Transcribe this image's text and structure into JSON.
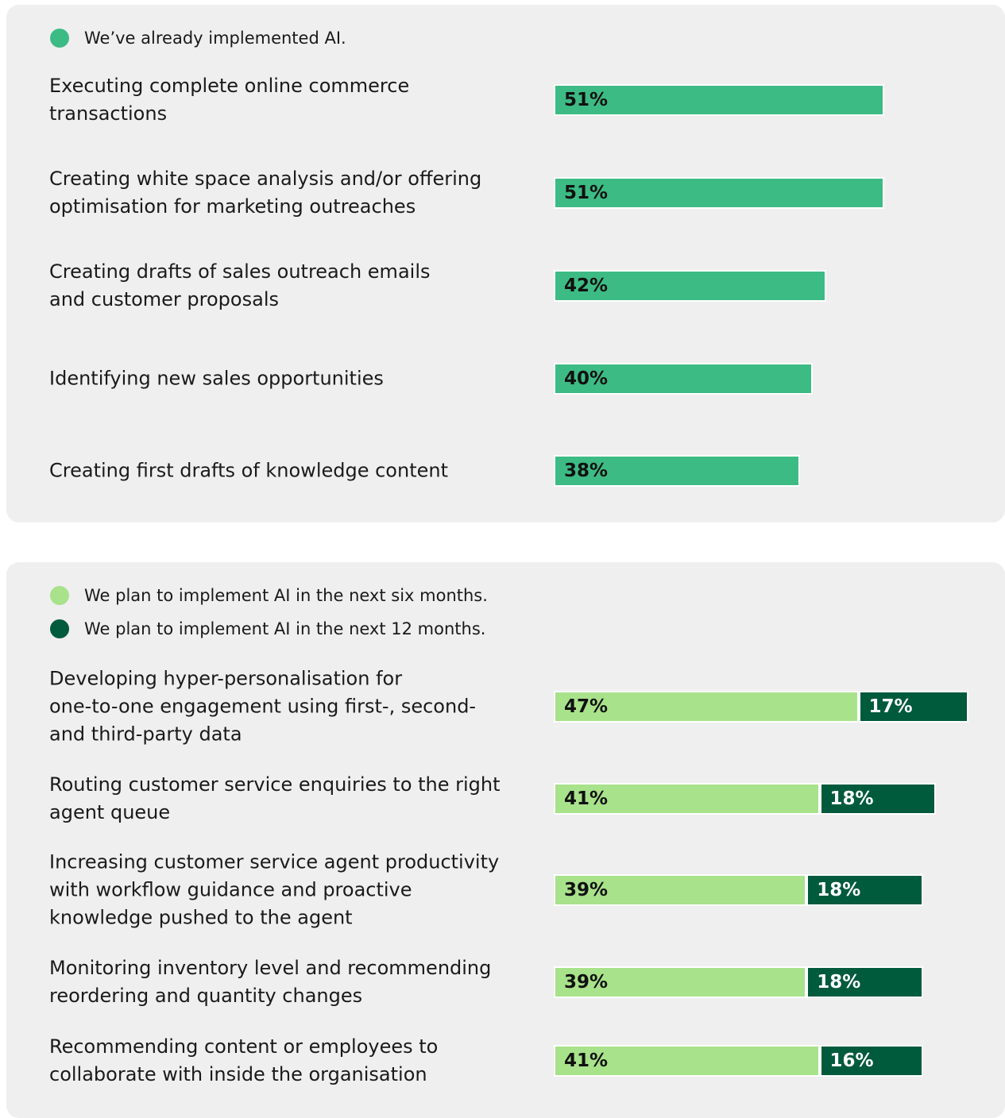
{
  "chart_data": [
    {
      "type": "bar",
      "categories": [
        "Executing complete online commerce\ntransactions",
        "Creating white space analysis and/or offering\noptimisation for marketing outreaches",
        "Creating drafts of sales outreach emails\nand customer proposals",
        "Identifying new sales opportunities",
        "Creating first drafts of knowledge content"
      ],
      "series": [
        {
          "name": "We’ve already implemented AI.",
          "color": "#3dbb84",
          "values": [
            51,
            51,
            42,
            40,
            38
          ],
          "value_labels": [
            "51%",
            "51%",
            "42%",
            "40%",
            "38%"
          ]
        }
      ]
    },
    {
      "type": "stacked_bar",
      "categories": [
        "Developing hyper-personalisation for\none-to-one engagement using first-, second-\nand third-party data",
        "Routing customer service enquiries to the right\nagent queue",
        "Increasing customer service agent productivity\nwith workflow guidance and proactive\nknowledge pushed to the agent",
        "Monitoring inventory level and recommending\nreordering and quantity changes",
        "Recommending content or employees to\ncollaborate with inside the organisation"
      ],
      "series": [
        {
          "name": "We plan to implement AI in the next six months.",
          "color": "#a8e28a",
          "values": [
            47,
            41,
            39,
            39,
            41
          ],
          "value_labels": [
            "47%",
            "41%",
            "39%",
            "39%",
            "41%"
          ]
        },
        {
          "name": "We plan to implement AI in the next 12 months.",
          "color": "#005a3c",
          "values": [
            17,
            18,
            18,
            18,
            16
          ],
          "value_labels": [
            "17%",
            "18%",
            "18%",
            "18%",
            "16%"
          ]
        }
      ]
    }
  ]
}
